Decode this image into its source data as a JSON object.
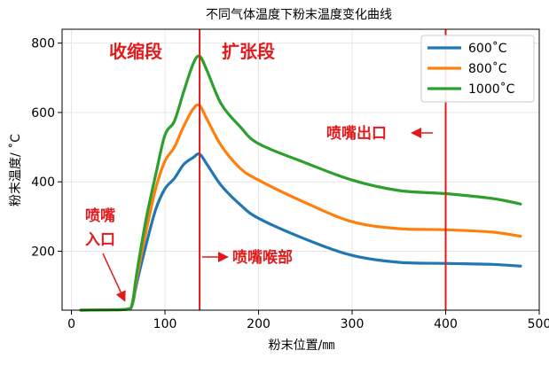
{
  "chart_data": {
    "type": "line",
    "title": "不同气体温度下粉末温度变化曲线",
    "xlabel": "粉末位置/㎜",
    "ylabel": "粉末温度/ ˚C",
    "xlim": [
      -10,
      500
    ],
    "ylim": [
      30,
      840
    ],
    "xticks": [
      0,
      100,
      200,
      300,
      400,
      500
    ],
    "yticks": [
      200,
      400,
      600,
      800
    ],
    "grid": true,
    "legend_position": "top-right",
    "series": [
      {
        "name": "600˚C",
        "color": "#1f77b4",
        "x": [
          10,
          40,
          60,
          65,
          70,
          80,
          90,
          100,
          110,
          120,
          130,
          137,
          145,
          160,
          180,
          200,
          250,
          300,
          350,
          400,
          450,
          480
        ],
        "y": [
          30,
          31,
          33,
          45,
          110,
          220,
          320,
          380,
          410,
          450,
          470,
          480,
          450,
          390,
          335,
          295,
          235,
          188,
          168,
          165,
          162,
          157
        ]
      },
      {
        "name": "800˚C",
        "color": "#ff7f0e",
        "x": [
          10,
          40,
          60,
          65,
          70,
          80,
          90,
          100,
          110,
          120,
          130,
          137,
          145,
          160,
          180,
          200,
          250,
          300,
          350,
          400,
          450,
          480
        ],
        "y": [
          30,
          31,
          33,
          48,
          125,
          260,
          380,
          460,
          500,
          560,
          610,
          620,
          580,
          505,
          440,
          405,
          340,
          285,
          265,
          262,
          255,
          243
        ]
      },
      {
        "name": "1000˚C",
        "color": "#2ca02c",
        "x": [
          10,
          40,
          60,
          65,
          70,
          80,
          90,
          100,
          110,
          120,
          130,
          137,
          145,
          160,
          180,
          200,
          250,
          300,
          350,
          400,
          450,
          480
        ],
        "y": [
          30,
          31,
          33,
          50,
          140,
          295,
          420,
          535,
          575,
          660,
          740,
          762,
          720,
          625,
          560,
          510,
          455,
          405,
          375,
          366,
          352,
          336
        ]
      }
    ],
    "vlines": [
      {
        "x": 137,
        "color": "#e31a1c"
      },
      {
        "x": 400,
        "color": "#e31a1c"
      }
    ],
    "annotations": [
      {
        "text": "收缩段",
        "x": 33,
        "y": 770,
        "color": "#e31a1c"
      },
      {
        "text": "扩张段",
        "x": 163,
        "y": 770,
        "color": "#e31a1c"
      },
      {
        "text": "喷嘴出口",
        "x": 282,
        "y": 535,
        "color": "#e31a1c"
      },
      {
        "text": "喷嘴",
        "x": 12,
        "y": 270,
        "color": "#e31a1c"
      },
      {
        "text": "入口",
        "x": 12,
        "y": 270,
        "color": "#e31a1c"
      },
      {
        "text": "喷嘴喉部",
        "x": 174,
        "y": 170,
        "color": "#e31a1c"
      }
    ]
  }
}
